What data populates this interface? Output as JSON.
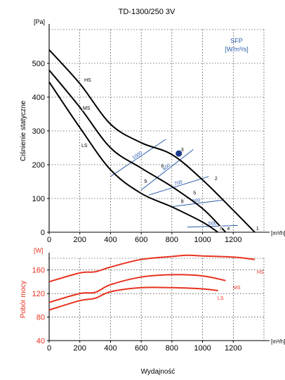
{
  "title": "TD-1300/250 3V",
  "colors": {
    "axis": "#000000",
    "grid": "#000000",
    "sfp": "#2a5caa",
    "power": "#e8321e",
    "point": "#1b3a8c"
  },
  "chart_data": [
    {
      "type": "line",
      "title": "TD-1300/250 3V",
      "ylabel": "Ciśnienie statyczne",
      "y_unit": "[Pa]",
      "x_unit": "[m³/h]",
      "xlim": [
        0,
        1400
      ],
      "ylim": [
        0,
        600
      ],
      "x_ticks": [
        0,
        200,
        400,
        600,
        800,
        1000,
        1200
      ],
      "y_ticks": [
        0,
        100,
        200,
        300,
        400,
        500
      ],
      "grid": true,
      "series": [
        {
          "name": "HS",
          "x": [
            0,
            200,
            400,
            600,
            800,
            1000,
            1200,
            1340
          ],
          "y": [
            540,
            440,
            320,
            265,
            230,
            155,
            65,
            0
          ]
        },
        {
          "name": "MS",
          "x": [
            0,
            200,
            400,
            600,
            800,
            1000,
            1150
          ],
          "y": [
            480,
            370,
            250,
            190,
            135,
            70,
            0
          ]
        },
        {
          "name": "LS",
          "x": [
            0,
            200,
            400,
            600,
            800,
            1000,
            1100
          ],
          "y": [
            445,
            310,
            185,
            115,
            75,
            30,
            0
          ]
        }
      ],
      "sfp": {
        "label": "SFP",
        "unit": "[W/m³/s]",
        "lines": [
          {
            "label": "1000",
            "x": [
              400,
              760
            ],
            "y": [
              165,
              275
            ]
          },
          {
            "label": "800",
            "x": [
              600,
              940
            ],
            "y": [
              125,
              245
            ]
          },
          {
            "label": "700",
            "x": [
              650,
              1040
            ],
            "y": [
              110,
              165
            ]
          },
          {
            "label": "600",
            "x": [
              790,
              1130
            ],
            "y": [
              75,
              95
            ]
          },
          {
            "label": "500",
            "x": [
              900,
              1230
            ],
            "y": [
              15,
              20
            ]
          }
        ]
      },
      "points": [
        {
          "label": "1",
          "x": 1340,
          "y": 0
        },
        {
          "label": "2",
          "x": 1070,
          "y": 148
        },
        {
          "label": "3",
          "x": 850,
          "y": 233
        },
        {
          "label": "4",
          "x": 1150,
          "y": 0
        },
        {
          "label": "5",
          "x": 930,
          "y": 105
        },
        {
          "label": "6",
          "x": 720,
          "y": 185
        },
        {
          "label": "7",
          "x": 1100,
          "y": 0
        },
        {
          "label": "8",
          "x": 850,
          "y": 80
        },
        {
          "label": "9",
          "x": 610,
          "y": 140
        }
      ],
      "marker": {
        "x": 845,
        "y": 233
      }
    },
    {
      "type": "line",
      "ylabel": "Pobór mocy",
      "y_unit": "[W]",
      "x_unit": "[m³/h]",
      "xlabel": "Wydajność",
      "xlim": [
        0,
        1400
      ],
      "ylim": [
        40,
        180
      ],
      "x_ticks": [
        0,
        200,
        400,
        600,
        800,
        1000,
        1200
      ],
      "y_ticks": [
        40,
        80,
        120,
        160
      ],
      "grid": true,
      "series": [
        {
          "name": "HS",
          "x": [
            0,
            200,
            300,
            400,
            600,
            800,
            900,
            1000,
            1200,
            1340
          ],
          "y": [
            140,
            155,
            157,
            165,
            178,
            183,
            185,
            184,
            182,
            178
          ]
        },
        {
          "name": "MS",
          "x": [
            0,
            200,
            300,
            400,
            600,
            800,
            1000,
            1150
          ],
          "y": [
            105,
            120,
            122,
            135,
            148,
            152,
            150,
            142
          ]
        },
        {
          "name": "LS",
          "x": [
            0,
            200,
            300,
            400,
            600,
            800,
            1000,
            1100
          ],
          "y": [
            92,
            108,
            112,
            123,
            130,
            130,
            128,
            125
          ]
        }
      ]
    }
  ]
}
